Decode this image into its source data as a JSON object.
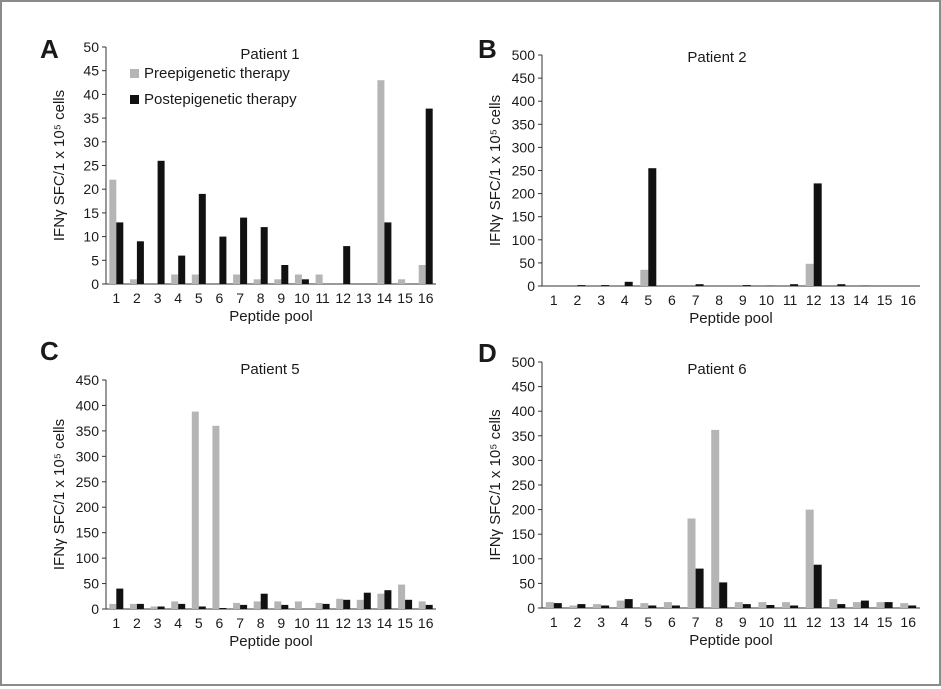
{
  "chart_data": [
    {
      "type": "bar",
      "panel_label": "A",
      "title": "Patient 1",
      "xlabel": "Peptide pool",
      "ylabel": "IFNγ SFC/1 x 10⁵ cells",
      "ylim": [
        0,
        50
      ],
      "yticks": [
        0,
        5,
        10,
        15,
        20,
        25,
        30,
        35,
        40,
        45,
        50
      ],
      "categories": [
        "1",
        "2",
        "3",
        "4",
        "5",
        "6",
        "7",
        "8",
        "9",
        "10",
        "11",
        "12",
        "13",
        "14",
        "15",
        "16"
      ],
      "legend": "top-left",
      "series": [
        {
          "name": "Preepigenetic therapy",
          "color": "#b5b5b5",
          "values": [
            22,
            1,
            0,
            2,
            2,
            0,
            2,
            1,
            1,
            2,
            2,
            0,
            0,
            43,
            1,
            4
          ]
        },
        {
          "name": "Postepigenetic therapy",
          "color": "#111111",
          "values": [
            13,
            9,
            26,
            6,
            19,
            10,
            14,
            12,
            4,
            1,
            0,
            8,
            0,
            13,
            0,
            37
          ]
        }
      ]
    },
    {
      "type": "bar",
      "panel_label": "B",
      "title": "Patient 2",
      "xlabel": "Peptide pool",
      "ylabel": "IFNγ SFC/1 x 10⁵ cells",
      "ylim": [
        0,
        500
      ],
      "yticks": [
        0,
        50,
        100,
        150,
        200,
        250,
        300,
        350,
        400,
        450,
        500
      ],
      "categories": [
        "1",
        "2",
        "3",
        "4",
        "5",
        "6",
        "7",
        "8",
        "9",
        "10",
        "11",
        "12",
        "13",
        "14",
        "15",
        "16"
      ],
      "series": [
        {
          "color": "#b5b5b5",
          "values": [
            0,
            0,
            0,
            0,
            35,
            0,
            0,
            0,
            0,
            0,
            0,
            48,
            0,
            0,
            0,
            0
          ]
        },
        {
          "color": "#111111",
          "values": [
            0,
            2,
            2,
            9,
            255,
            0,
            4,
            0,
            2,
            1,
            4,
            222,
            4,
            1,
            0,
            0
          ]
        }
      ]
    },
    {
      "type": "bar",
      "panel_label": "C",
      "title": "Patient 5",
      "xlabel": "Peptide pool",
      "ylabel": "IFNγ SFC/1 x 10⁵ cells",
      "ylim": [
        0,
        450
      ],
      "yticks": [
        0,
        50,
        100,
        150,
        200,
        250,
        300,
        350,
        400,
        450
      ],
      "categories": [
        "1",
        "2",
        "3",
        "4",
        "5",
        "6",
        "7",
        "8",
        "9",
        "10",
        "11",
        "12",
        "13",
        "14",
        "15",
        "16"
      ],
      "series": [
        {
          "color": "#b5b5b5",
          "values": [
            10,
            10,
            5,
            15,
            388,
            360,
            12,
            15,
            15,
            15,
            12,
            20,
            18,
            30,
            48,
            15
          ]
        },
        {
          "color": "#111111",
          "values": [
            40,
            10,
            5,
            10,
            5,
            2,
            8,
            30,
            8,
            0,
            10,
            18,
            32,
            37,
            18,
            8
          ]
        }
      ]
    },
    {
      "type": "bar",
      "panel_label": "D",
      "title": "Patient 6",
      "xlabel": "Peptide pool",
      "ylabel": "IFNγ SFC/1 x 10⁵ cells",
      "ylim": [
        0,
        500
      ],
      "yticks": [
        0,
        50,
        100,
        150,
        200,
        250,
        300,
        350,
        400,
        450,
        500
      ],
      "categories": [
        "1",
        "2",
        "3",
        "4",
        "5",
        "6",
        "7",
        "8",
        "9",
        "10",
        "11",
        "12",
        "13",
        "14",
        "15",
        "16"
      ],
      "series": [
        {
          "color": "#b5b5b5",
          "values": [
            12,
            5,
            8,
            15,
            10,
            12,
            182,
            362,
            12,
            12,
            12,
            200,
            18,
            12,
            12,
            10
          ]
        },
        {
          "color": "#111111",
          "values": [
            10,
            8,
            5,
            18,
            5,
            5,
            80,
            52,
            8,
            6,
            5,
            88,
            8,
            15,
            12,
            5
          ]
        }
      ]
    }
  ]
}
